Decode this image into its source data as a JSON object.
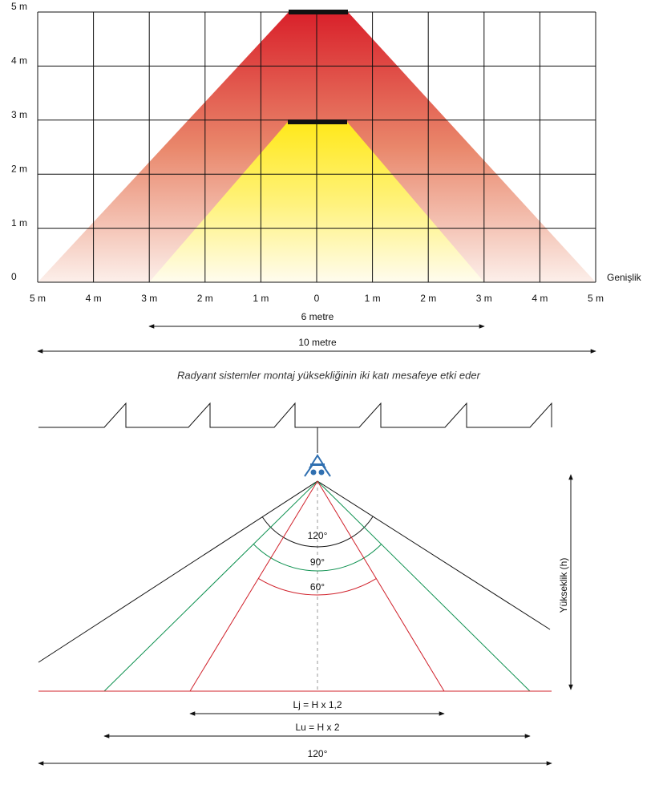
{
  "top_chart": {
    "y_labels": [
      "5 m",
      "4 m",
      "3 m",
      "2 m",
      "1 m",
      "0"
    ],
    "x_axis_label": "Genişlik",
    "x_labels": [
      "5 m",
      "4 m",
      "3 m",
      "2 m",
      "1 m",
      "0",
      "1 m",
      "2 m",
      "3 m",
      "4 m",
      "5 m"
    ],
    "arrows": [
      "6 metre",
      "10 metre"
    ]
  },
  "caption": "Radyant sistemler montaj yüksekliğinin iki katı mesafeye etki eder",
  "bottom_diagram": {
    "angles": [
      "120°",
      "90°",
      "60°"
    ],
    "height_label": "Yükseklik (h)",
    "widths": [
      "Lj = H x 1,2",
      "Lu = H x 2",
      "120°"
    ]
  }
}
